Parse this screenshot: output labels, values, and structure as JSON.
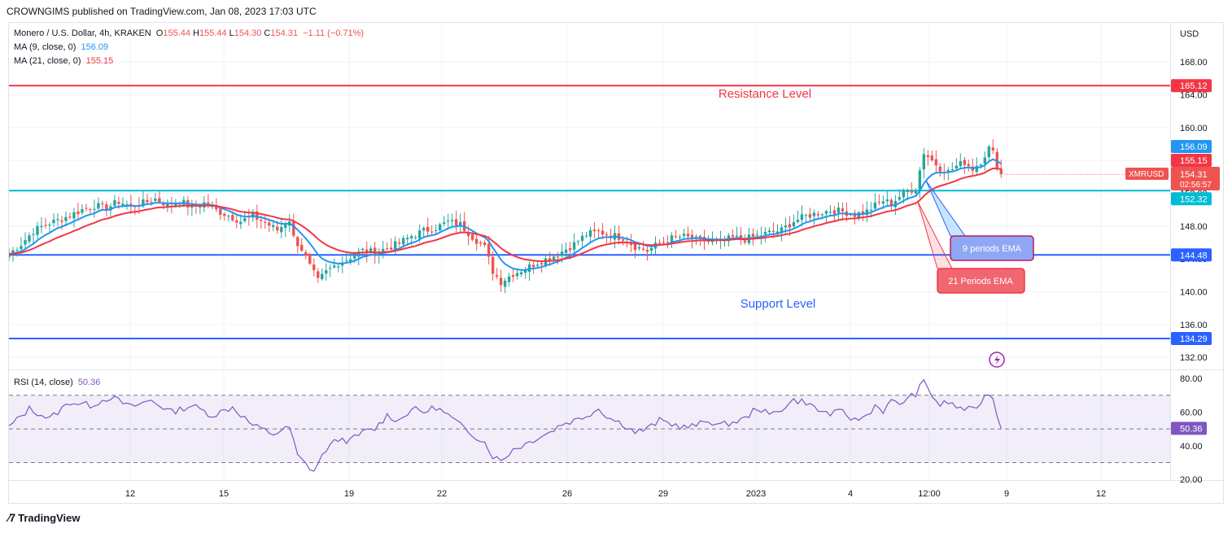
{
  "header": {
    "publisher": "CROWNGIMS published on TradingView.com, Jan 08, 2023 17:03 UTC"
  },
  "legend": {
    "symbol": "Monero / U.S. Dollar, 4h, KRAKEN",
    "ohlc": [
      {
        "k": "O",
        "v": "155.44"
      },
      {
        "k": "H",
        "v": "155.44"
      },
      {
        "k": "L",
        "v": "154.30"
      },
      {
        "k": "C",
        "v": "154.31"
      }
    ],
    "change": "−1.11 (−0.71%)",
    "ma9_label": "MA (9, close, 0)",
    "ma9_value": "156.09",
    "ma21_label": "MA (21, close, 0)",
    "ma21_value": "155.15",
    "rsi_label": "RSI (14, close)",
    "rsi_value": "50.36"
  },
  "colors": {
    "up": "#26a69a",
    "down": "#ef5350",
    "ma9": "#2196f3",
    "ma21": "#f23645",
    "resistance": "#f23645",
    "support": "#2962ff",
    "cyan": "#00bcd4",
    "rsi": "#7e57c2"
  },
  "annotations": {
    "resistance": "Resistance Level",
    "support": "Support Level",
    "ema9": "9 periods EMA",
    "ema21": "21 Periods EMA"
  },
  "price_axis": {
    "currency": "USD",
    "ticks": [
      "168.00",
      "164.00",
      "160.00",
      "156.00",
      "152.00",
      "148.00",
      "144.00",
      "140.00",
      "136.00",
      "132.00"
    ],
    "badges": {
      "resistance": "165.12",
      "ma9": "156.09",
      "ma21": "155.15",
      "symbol": "XMRUSD",
      "last": "154.31",
      "countdown": "02:56:57",
      "cyan": "152.32",
      "support1": "144.48",
      "support2": "134.29"
    }
  },
  "rsi_axis": {
    "ticks": [
      "80.00",
      "60.00",
      "40.00",
      "20.00"
    ],
    "badge": "50.36"
  },
  "time_axis": {
    "labels": [
      "12",
      "15",
      "19",
      "22",
      "26",
      "29",
      "2023",
      "4",
      "12:00",
      "9",
      "12"
    ]
  },
  "footer": {
    "brand": "TradingView"
  },
  "chart_data": {
    "type": "candlestick",
    "symbol": "XMRUSD",
    "timeframe": "4h",
    "y_range": [
      131,
      171
    ],
    "levels": [
      {
        "name": "Resistance Level",
        "value": 165.12
      },
      {
        "value": 152.32
      },
      {
        "name": "Support Level",
        "value": 144.48
      },
      {
        "value": 134.29
      }
    ],
    "close_path": [
      [
        0,
        144.6
      ],
      [
        3,
        145.8
      ],
      [
        6,
        147.4
      ],
      [
        9,
        148.2
      ],
      [
        12,
        148.7
      ],
      [
        15,
        149.3
      ],
      [
        18,
        150.0
      ],
      [
        21,
        150.5
      ],
      [
        24,
        150.2
      ],
      [
        27,
        151.0
      ],
      [
        30,
        150.4
      ],
      [
        33,
        150.8
      ],
      [
        36,
        151.3
      ],
      [
        39,
        150.6
      ],
      [
        42,
        151.1
      ],
      [
        45,
        150.2
      ],
      [
        48,
        150.8
      ],
      [
        51,
        149.9
      ],
      [
        54,
        149.3
      ],
      [
        57,
        148.6
      ],
      [
        60,
        149.2
      ],
      [
        63,
        148.4
      ],
      [
        66,
        147.5
      ],
      [
        69,
        148.8
      ],
      [
        70,
        146.6
      ],
      [
        72,
        145.2
      ],
      [
        74,
        143.1
      ],
      [
        76,
        141.3
      ],
      [
        78,
        142.4
      ],
      [
        81,
        143.5
      ],
      [
        84,
        144.2
      ],
      [
        87,
        145.0
      ],
      [
        90,
        144.8
      ],
      [
        93,
        145.3
      ],
      [
        96,
        145.9
      ],
      [
        99,
        146.8
      ],
      [
        102,
        147.4
      ],
      [
        105,
        147.8
      ],
      [
        108,
        148.5
      ],
      [
        111,
        148.2
      ],
      [
        114,
        146.7
      ],
      [
        117,
        145.4
      ],
      [
        119,
        142.5
      ],
      [
        121,
        141.2
      ],
      [
        124,
        142.2
      ],
      [
        127,
        142.8
      ],
      [
        130,
        143.6
      ],
      [
        133,
        144.1
      ],
      [
        136,
        144.9
      ],
      [
        139,
        145.8
      ],
      [
        142,
        147.0
      ],
      [
        145,
        147.3
      ],
      [
        148,
        146.9
      ],
      [
        151,
        146.6
      ],
      [
        154,
        145.5
      ],
      [
        157,
        145.0
      ],
      [
        160,
        145.9
      ],
      [
        163,
        146.5
      ],
      [
        166,
        146.7
      ],
      [
        169,
        146.3
      ],
      [
        172,
        146.2
      ],
      [
        175,
        146.0
      ],
      [
        178,
        146.6
      ],
      [
        181,
        146.4
      ],
      [
        184,
        146.8
      ],
      [
        187,
        147.2
      ],
      [
        190,
        147.5
      ],
      [
        193,
        148.6
      ],
      [
        196,
        149.2
      ],
      [
        199,
        149.6
      ],
      [
        202,
        149.9
      ],
      [
        205,
        149.8
      ],
      [
        208,
        149.4
      ],
      [
        211,
        149.8
      ],
      [
        213,
        150.5
      ],
      [
        215,
        151.1
      ],
      [
        217,
        150.8
      ],
      [
        219,
        151.6
      ],
      [
        221,
        152.3
      ],
      [
        223,
        152.6
      ],
      [
        225,
        157.0
      ],
      [
        227,
        156.0
      ],
      [
        229,
        155.1
      ],
      [
        231,
        154.6
      ],
      [
        233,
        155.3
      ],
      [
        235,
        155.8
      ],
      [
        237,
        155.0
      ],
      [
        239,
        155.9
      ],
      [
        241,
        157.5
      ],
      [
        242,
        156.9
      ],
      [
        243,
        155.4
      ],
      [
        244,
        154.31
      ]
    ],
    "series": [
      {
        "name": "MA (9, close, 0)",
        "last": 156.09
      },
      {
        "name": "MA (21, close, 0)",
        "last": 155.15
      }
    ],
    "rsi": {
      "name": "RSI (14, close)",
      "last": 50.36,
      "range": [
        20,
        80
      ],
      "bands": [
        30,
        70
      ],
      "path": [
        [
          0,
          51
        ],
        [
          5,
          62
        ],
        [
          10,
          56
        ],
        [
          15,
          66
        ],
        [
          20,
          64
        ],
        [
          25,
          69
        ],
        [
          30,
          63
        ],
        [
          35,
          67
        ],
        [
          40,
          60
        ],
        [
          45,
          64
        ],
        [
          50,
          58
        ],
        [
          55,
          63
        ],
        [
          60,
          52
        ],
        [
          65,
          47
        ],
        [
          69,
          51
        ],
        [
          71,
          34
        ],
        [
          73,
          29
        ],
        [
          75,
          25
        ],
        [
          78,
          38
        ],
        [
          81,
          44
        ],
        [
          84,
          43
        ],
        [
          87,
          48
        ],
        [
          90,
          50
        ],
        [
          93,
          58
        ],
        [
          96,
          55
        ],
        [
          99,
          62
        ],
        [
          102,
          60
        ],
        [
          105,
          63
        ],
        [
          108,
          58
        ],
        [
          111,
          52
        ],
        [
          114,
          47
        ],
        [
          117,
          42
        ],
        [
          119,
          34
        ],
        [
          121,
          31
        ],
        [
          124,
          38
        ],
        [
          127,
          41
        ],
        [
          130,
          45
        ],
        [
          133,
          48
        ],
        [
          136,
          53
        ],
        [
          139,
          55
        ],
        [
          142,
          58
        ],
        [
          145,
          62
        ],
        [
          148,
          56
        ],
        [
          151,
          53
        ],
        [
          154,
          48
        ],
        [
          157,
          50
        ],
        [
          160,
          55
        ],
        [
          163,
          53
        ],
        [
          166,
          51
        ],
        [
          169,
          52
        ],
        [
          172,
          55
        ],
        [
          175,
          52
        ],
        [
          178,
          54
        ],
        [
          181,
          56
        ],
        [
          184,
          63
        ],
        [
          187,
          58
        ],
        [
          190,
          62
        ],
        [
          193,
          67
        ],
        [
          196,
          66
        ],
        [
          199,
          61
        ],
        [
          202,
          59
        ],
        [
          205,
          60
        ],
        [
          208,
          55
        ],
        [
          211,
          58
        ],
        [
          213,
          64
        ],
        [
          215,
          61
        ],
        [
          217,
          66
        ],
        [
          219,
          65
        ],
        [
          221,
          68
        ],
        [
          223,
          71
        ],
        [
          225,
          78
        ],
        [
          227,
          70
        ],
        [
          229,
          64
        ],
        [
          231,
          66
        ],
        [
          233,
          63
        ],
        [
          235,
          62
        ],
        [
          237,
          61
        ],
        [
          239,
          66
        ],
        [
          241,
          72
        ],
        [
          242,
          68
        ],
        [
          243,
          58
        ],
        [
          244,
          50.36
        ]
      ]
    },
    "x_labels": [
      "12",
      "15",
      "19",
      "22",
      "26",
      "29",
      "2023",
      "4",
      "12:00",
      "9",
      "12"
    ]
  }
}
